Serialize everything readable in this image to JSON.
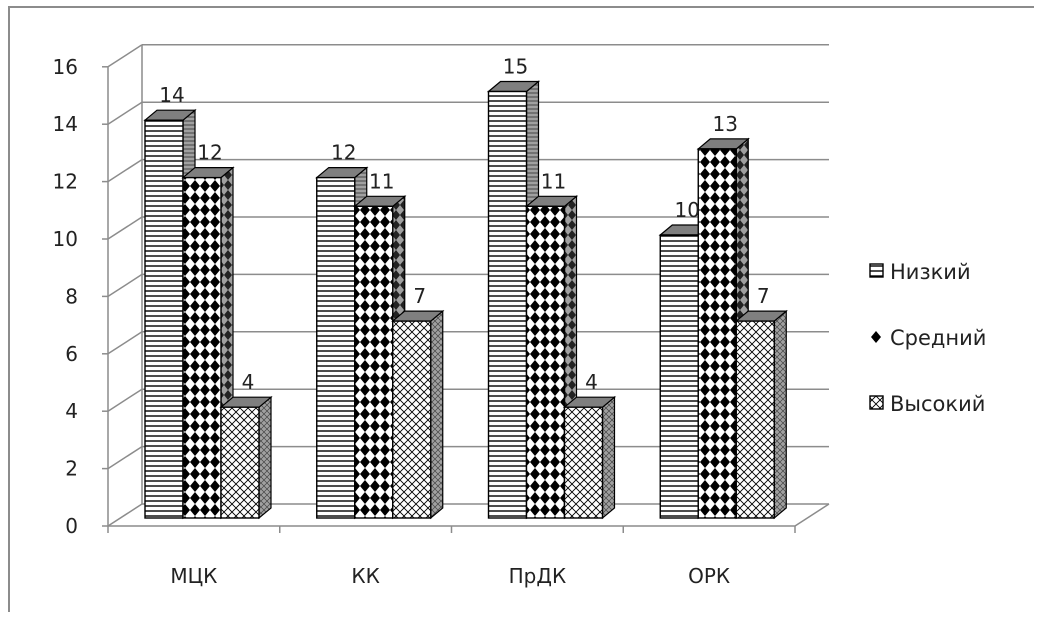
{
  "chart_data": {
    "type": "bar",
    "title": "",
    "xlabel": "",
    "ylabel": "",
    "categories": [
      "МЦК",
      "КК",
      "ПрДК",
      "ОРК"
    ],
    "series": [
      {
        "name": "Низкий",
        "values": [
          14,
          12,
          15,
          10
        ]
      },
      {
        "name": "Средний",
        "values": [
          12,
          11,
          11,
          13
        ]
      },
      {
        "name": "Высокий",
        "values": [
          4,
          7,
          4,
          7
        ]
      }
    ],
    "ylim": [
      0,
      16
    ],
    "yticks": [
      0,
      2,
      4,
      6,
      8,
      10,
      12,
      14,
      16
    ],
    "grid": true,
    "legend_position": "right",
    "three_d": true,
    "colors": {
      "stroke": "#000000",
      "fill": "#ffffff",
      "side": "#9a9a9a",
      "top": "#7f7f7f",
      "grid": "#8c8c8c"
    }
  }
}
